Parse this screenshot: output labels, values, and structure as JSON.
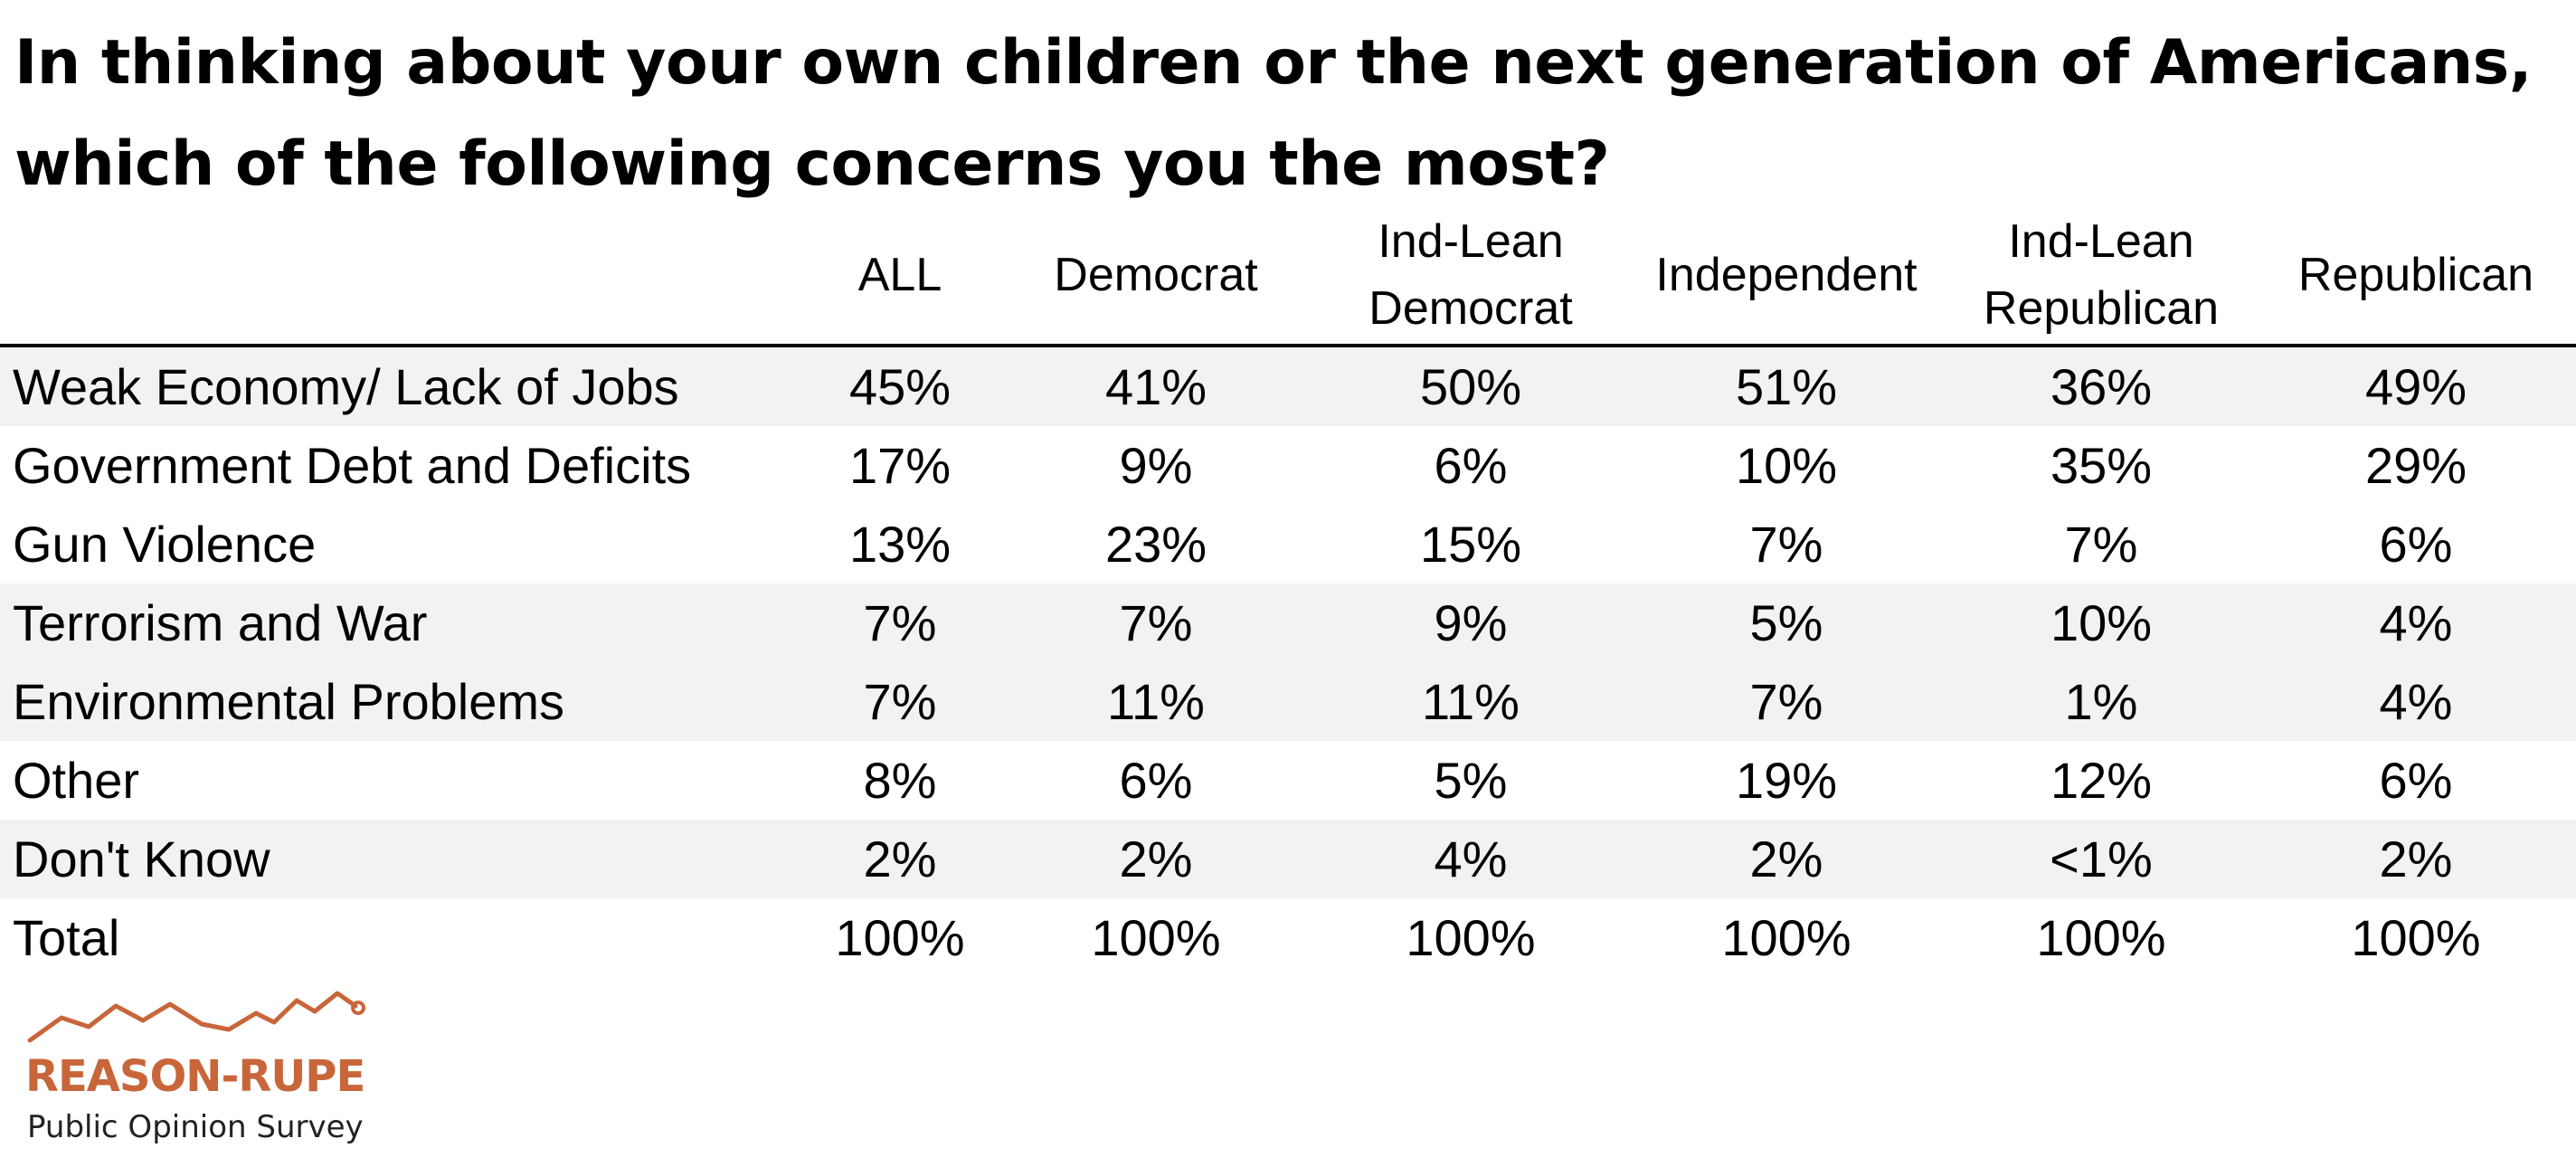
{
  "chart_data": {
    "type": "table",
    "title_lines": [
      "In thinking about your own children or the next generation of Americans,",
      "which of the following concerns you the most?"
    ],
    "columns": [
      "ALL",
      "Democrat",
      "Ind-Lean\nDemocrat",
      "Independent",
      "Ind-Lean\nRepublican",
      "Republican"
    ],
    "rows": [
      {
        "label": "Weak Economy/ Lack of Jobs",
        "values": [
          "45%",
          "41%",
          "50%",
          "51%",
          "36%",
          "49%"
        ]
      },
      {
        "label": "Government Debt and Deficits",
        "values": [
          "17%",
          "9%",
          "6%",
          "10%",
          "35%",
          "29%"
        ]
      },
      {
        "label": "Gun Violence",
        "values": [
          "13%",
          "23%",
          "15%",
          "7%",
          "7%",
          "6%"
        ]
      },
      {
        "label": "Terrorism and War",
        "values": [
          "7%",
          "7%",
          "9%",
          "5%",
          "10%",
          "4%"
        ]
      },
      {
        "label": "Environmental Problems",
        "values": [
          "7%",
          "11%",
          "11%",
          "7%",
          "1%",
          "4%"
        ]
      },
      {
        "label": "Other",
        "values": [
          "8%",
          "6%",
          "5%",
          "19%",
          "12%",
          "6%"
        ]
      },
      {
        "label": "Don't Know",
        "values": [
          "2%",
          "2%",
          "4%",
          "2%",
          "<1%",
          "2%"
        ]
      },
      {
        "label": "Total",
        "values": [
          "100%",
          "100%",
          "100%",
          "100%",
          "100%",
          "100%"
        ]
      }
    ],
    "shaded_rows": [
      true,
      false,
      false,
      true,
      true,
      false,
      true,
      false
    ]
  },
  "logo": {
    "brand": "REASON-RUPE",
    "subtitle": "Public Opinion Survey",
    "icon": "trend-line-icon",
    "color": "#c8663a"
  }
}
